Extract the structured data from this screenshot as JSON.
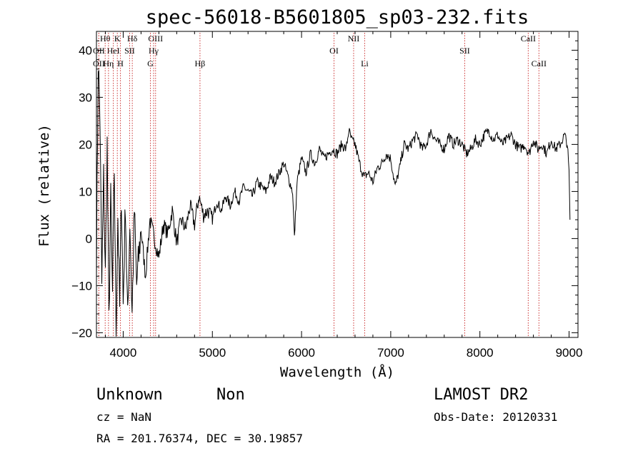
{
  "chart_data": {
    "type": "line",
    "title": "spec-56018-B5601805_sp03-232.fits",
    "xlabel": "Wavelength (Å)",
    "ylabel": "Flux (relative)",
    "xlim": [
      3700,
      9100
    ],
    "ylim": [
      -21,
      44
    ],
    "xticks": [
      4000,
      5000,
      6000,
      7000,
      8000,
      9000
    ],
    "yticks": [
      -20,
      -10,
      0,
      10,
      20,
      30,
      40
    ],
    "spectrum": {
      "x": [
        3700,
        3720,
        3740,
        3760,
        3780,
        3800,
        3820,
        3840,
        3860,
        3880,
        3900,
        3920,
        3940,
        3960,
        3980,
        4000,
        4025,
        4050,
        4075,
        4100,
        4125,
        4150,
        4200,
        4250,
        4300,
        4350,
        4400,
        4450,
        4500,
        4550,
        4600,
        4650,
        4700,
        4750,
        4800,
        4850,
        4900,
        4950,
        5000,
        5050,
        5100,
        5150,
        5200,
        5250,
        5300,
        5350,
        5400,
        5450,
        5500,
        5550,
        5600,
        5650,
        5700,
        5750,
        5800,
        5850,
        5900,
        5920,
        5950,
        6000,
        6050,
        6100,
        6150,
        6200,
        6250,
        6300,
        6350,
        6400,
        6450,
        6500,
        6530,
        6560,
        6600,
        6650,
        6700,
        6750,
        6800,
        6850,
        6900,
        6950,
        7000,
        7050,
        7100,
        7150,
        7200,
        7250,
        7300,
        7350,
        7400,
        7450,
        7500,
        7550,
        7600,
        7650,
        7700,
        7750,
        7800,
        7850,
        7900,
        7950,
        8000,
        8050,
        8100,
        8150,
        8200,
        8250,
        8300,
        8350,
        8400,
        8450,
        8500,
        8550,
        8600,
        8650,
        8700,
        8750,
        8800,
        8850,
        8900,
        8950,
        8980,
        9000,
        9010
      ],
      "y": [
        -5,
        38,
        25,
        -10,
        13,
        -8,
        20,
        -18,
        8,
        -12,
        15,
        -20,
        5,
        -15,
        10,
        -14,
        8,
        -18,
        4,
        -16,
        6,
        -10,
        2,
        -8,
        4,
        0,
        -4,
        3,
        1,
        6,
        -1,
        4,
        2,
        7,
        3,
        9,
        5,
        6,
        4,
        8,
        6,
        9,
        7,
        10,
        8,
        11,
        10,
        9,
        12,
        11,
        10,
        13,
        12,
        14,
        16,
        13,
        10,
        0,
        12,
        17,
        14,
        18,
        16,
        19,
        17,
        18,
        19,
        18,
        20,
        19,
        23,
        21,
        20,
        16,
        13,
        14,
        12,
        15,
        16,
        18,
        17,
        11,
        15,
        20,
        19,
        21,
        22,
        19,
        20,
        23,
        21,
        20,
        19,
        22,
        20,
        21,
        20,
        18,
        19,
        21,
        20,
        22,
        23,
        21,
        22,
        20,
        21,
        22,
        20,
        19,
        20,
        18,
        21,
        19,
        20,
        18,
        21,
        19,
        20,
        22,
        20,
        14,
        4
      ]
    },
    "lines": [
      {
        "label": "Hθ",
        "x": 3798
      },
      {
        "label": "K",
        "x": 3934
      },
      {
        "label": "Hδ",
        "x": 4102
      },
      {
        "label": "OIII",
        "x": 4363
      },
      {
        "label": "OII",
        "x": 3727
      },
      {
        "label": "HeI",
        "x": 3889
      },
      {
        "label": "SII",
        "x": 4072
      },
      {
        "label": "Hγ",
        "x": 4341
      },
      {
        "label": "OII",
        "x": 3727
      },
      {
        "label": "Hη",
        "x": 3835
      },
      {
        "label": "H",
        "x": 3969
      },
      {
        "label": "G",
        "x": 4305
      },
      {
        "label": "Hβ",
        "x": 4861
      },
      {
        "label": "OI",
        "x": 6364
      },
      {
        "label": "NII",
        "x": 6584
      },
      {
        "label": "Li",
        "x": 6708
      },
      {
        "label": "SII",
        "x": 7830
      },
      {
        "label": "CaII",
        "x": 8542
      },
      {
        "label": "CaII",
        "x": 8662
      }
    ]
  },
  "info": {
    "classification": "Unknown",
    "subclass": "Non",
    "survey": "LAMOST DR2",
    "cz": "cz = NaN",
    "obs_date": "Obs-Date: 20120331",
    "coords": "RA = 201.76374, DEC =  30.19857"
  },
  "colors": {
    "line_marker": "#cc3333",
    "spectrum": "#000000"
  }
}
